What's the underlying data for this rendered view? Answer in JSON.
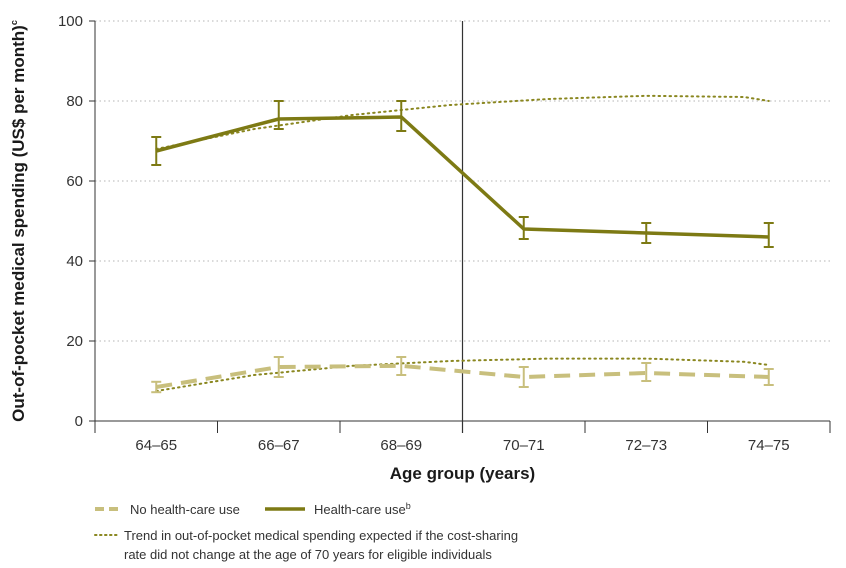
{
  "chart_data": {
    "type": "line",
    "categories": [
      "64–65",
      "66–67",
      "68–69",
      "70–71",
      "72–73",
      "74–75"
    ],
    "xlabel": "Age group (years)",
    "ylabel_main": "Out-of-pocket medical spending (US$ per month)",
    "ylabel_sup": "c",
    "ylim": [
      0,
      100
    ],
    "yticks": [
      0,
      20,
      40,
      60,
      80,
      100
    ],
    "cutoff_between": [
      "68–69",
      "70–71"
    ],
    "grid": "horizontal dotted",
    "series": [
      {
        "name": "No health-care use",
        "style": "dashed",
        "color": "#c8bf7d",
        "values": [
          8.5,
          13.5,
          13.8,
          11,
          12,
          11
        ],
        "error_low": [
          7.2,
          11,
          11.5,
          8.5,
          10,
          9
        ],
        "error_high": [
          9.8,
          16,
          16,
          13.5,
          14.5,
          13
        ]
      },
      {
        "name": "Health-care use",
        "name_sup": "b",
        "style": "solid",
        "color": "#7d7a14",
        "values": [
          67.5,
          75.5,
          76,
          48,
          47,
          46
        ],
        "error_low": [
          64,
          73,
          72.5,
          45.5,
          44.5,
          43.5
        ],
        "error_high": [
          71,
          80,
          80,
          51,
          49.5,
          49.5
        ]
      }
    ],
    "trend_lines": [
      {
        "x": [
          0,
          0.8,
          1.6,
          2.4,
          3.2,
          4,
          4.8,
          5
        ],
        "values": [
          68,
          73,
          76.5,
          79,
          80.5,
          81.3,
          81,
          80
        ],
        "style": "dotted",
        "color": "#8a8720"
      },
      {
        "x": [
          0,
          0.8,
          1.6,
          2.4,
          3.2,
          4,
          4.8,
          5
        ],
        "values": [
          7.5,
          11.5,
          13.8,
          15,
          15.6,
          15.6,
          14.8,
          14
        ],
        "style": "dotted",
        "color": "#8a8720"
      }
    ],
    "legend": {
      "no_use": "No health-care use",
      "use": "Health-care use",
      "use_sup": "b",
      "trend_line1": "Trend in out-of-pocket medical spending expected if the cost-sharing",
      "trend_line2": "rate did not change at the age of 70 years for eligible individuals"
    }
  }
}
